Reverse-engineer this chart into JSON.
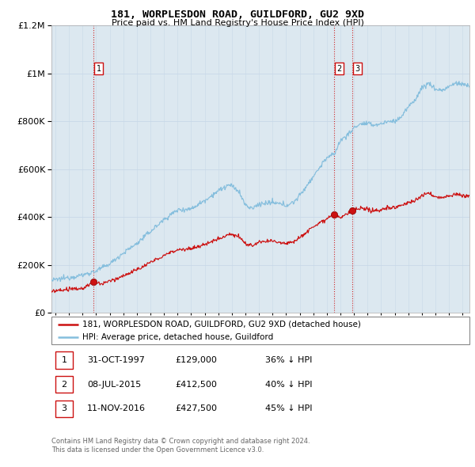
{
  "title": "181, WORPLESDON ROAD, GUILDFORD, GU2 9XD",
  "subtitle": "Price paid vs. HM Land Registry's House Price Index (HPI)",
  "ylim": [
    0,
    1200000
  ],
  "xlim_start": 1994.7,
  "xlim_end": 2025.5,
  "hpi_color": "#85bedd",
  "price_color": "#cc1111",
  "vline_color": "#cc1111",
  "box_edge_color": "#cc1111",
  "grid_color": "#c8d8e8",
  "bg_color": "#dce8f0",
  "plot_bg": "#dce8f0",
  "sales": [
    {
      "label": "1",
      "date_num": 1997.83,
      "price": 129000
    },
    {
      "label": "2",
      "date_num": 2015.52,
      "price": 412500
    },
    {
      "label": "3",
      "date_num": 2016.86,
      "price": 427500
    }
  ],
  "legend_entries": [
    "181, WORPLESDON ROAD, GUILDFORD, GU2 9XD (detached house)",
    "HPI: Average price, detached house, Guildford"
  ],
  "table_rows": [
    [
      "1",
      "31-OCT-1997",
      "£129,000",
      "36% ↓ HPI"
    ],
    [
      "2",
      "08-JUL-2015",
      "£412,500",
      "40% ↓ HPI"
    ],
    [
      "3",
      "11-NOV-2016",
      "£427,500",
      "45% ↓ HPI"
    ]
  ],
  "footer_line1": "Contains HM Land Registry data © Crown copyright and database right 2024.",
  "footer_line2": "This data is licensed under the Open Government Licence v3.0."
}
